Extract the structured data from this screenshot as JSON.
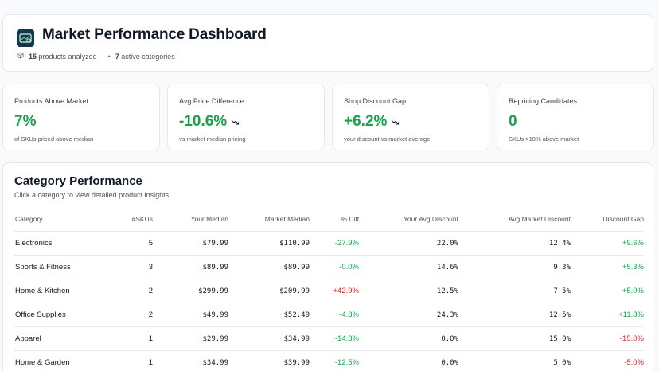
{
  "header": {
    "title": "Market Performance Dashboard",
    "products_count": "15",
    "products_label": "products analyzed",
    "categories_count": "7",
    "categories_label": "active categories",
    "logo_icon": "dashboard-logo-icon"
  },
  "kpis": [
    {
      "label": "Products Above Market",
      "value": "7%",
      "sub": "of SKUs priced above median",
      "trend": null
    },
    {
      "label": "Avg Price Difference",
      "value": "-10.6%",
      "sub": "vs market median pricing",
      "trend": "trend-down-icon"
    },
    {
      "label": "Shop Discount Gap",
      "value": "+6.2%",
      "sub": "your discount vs market average",
      "trend": "trend-down-icon"
    },
    {
      "label": "Repricing Candidates",
      "value": "0",
      "sub": "SKUs >10% above market",
      "trend": null
    }
  ],
  "colors": {
    "positive": "#16a34a",
    "negative": "#dc2626",
    "logo_bg": "#0f3a4a"
  },
  "category_table": {
    "title": "Category Performance",
    "subtitle": "Click a category to view detailed product insights",
    "columns": [
      "Category",
      "#SKUs",
      "Your Median",
      "Market Median",
      "% Diff",
      "Your Avg Discount",
      "Avg Market Discount",
      "Discount Gap"
    ],
    "rows": [
      {
        "category": "Electronics",
        "skus": "5",
        "your_median": "$79.99",
        "market_median": "$110.99",
        "pct_diff": "-27.9%",
        "your_avg_discount": "22.0%",
        "avg_market_discount": "12.4%",
        "discount_gap": "+9.6%"
      },
      {
        "category": "Sports & Fitness",
        "skus": "3",
        "your_median": "$89.99",
        "market_median": "$89.99",
        "pct_diff": "-0.0%",
        "your_avg_discount": "14.6%",
        "avg_market_discount": "9.3%",
        "discount_gap": "+5.3%"
      },
      {
        "category": "Home & Kitchen",
        "skus": "2",
        "your_median": "$299.99",
        "market_median": "$209.99",
        "pct_diff": "+42.9%",
        "your_avg_discount": "12.5%",
        "avg_market_discount": "7.5%",
        "discount_gap": "+5.0%"
      },
      {
        "category": "Office Supplies",
        "skus": "2",
        "your_median": "$49.99",
        "market_median": "$52.49",
        "pct_diff": "-4.8%",
        "your_avg_discount": "24.3%",
        "avg_market_discount": "12.5%",
        "discount_gap": "+11.8%"
      },
      {
        "category": "Apparel",
        "skus": "1",
        "your_median": "$29.99",
        "market_median": "$34.99",
        "pct_diff": "-14.3%",
        "your_avg_discount": "0.0%",
        "avg_market_discount": "15.0%",
        "discount_gap": "-15.0%"
      },
      {
        "category": "Home & Garden",
        "skus": "1",
        "your_median": "$34.99",
        "market_median": "$39.99",
        "pct_diff": "-12.5%",
        "your_avg_discount": "0.0%",
        "avg_market_discount": "5.0%",
        "discount_gap": "-5.0%"
      }
    ]
  }
}
